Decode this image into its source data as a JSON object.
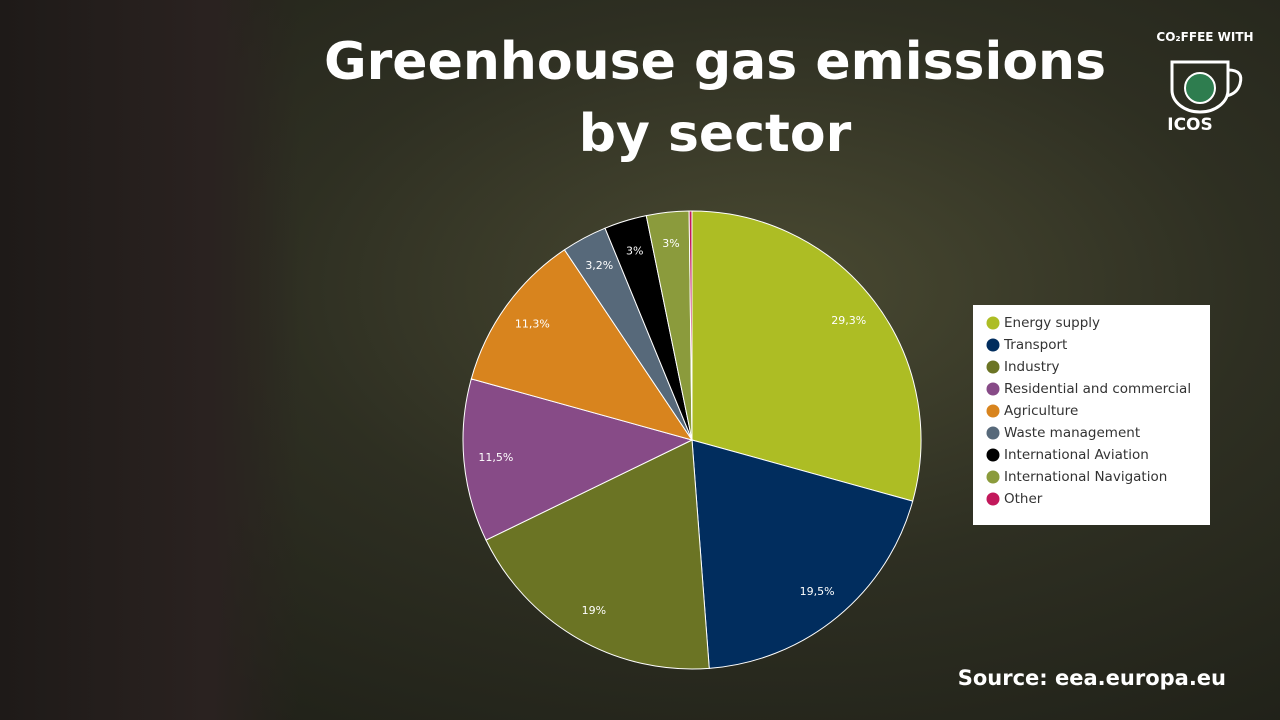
{
  "chart_data": {
    "type": "pie",
    "title": "Greenhouse gas emissions by sector",
    "categories": [
      "Energy supply",
      "Transport",
      "Industry",
      "Residential and commercial",
      "Agriculture",
      "Waste management",
      "International Aviation",
      "International Navigation",
      "Other"
    ],
    "values": [
      29.3,
      19.5,
      19,
      11.5,
      11.3,
      3.2,
      3,
      3,
      0.2
    ],
    "value_labels": [
      "29,3%",
      "19,5%",
      "19%",
      "11,5%",
      "11,3%",
      "3,2%",
      "3%",
      "3%",
      null
    ],
    "colors": [
      "#adbd24",
      "#012d5e",
      "#6b7424",
      "#874b87",
      "#d8841e",
      "#57697a",
      "#000000",
      "#8b9b3c",
      "#c2185b"
    ],
    "legend": "right"
  },
  "source": "Source: eea.europa.eu",
  "logo": {
    "top": "CO₂FFEE WITH",
    "bottom": "ICOS"
  }
}
